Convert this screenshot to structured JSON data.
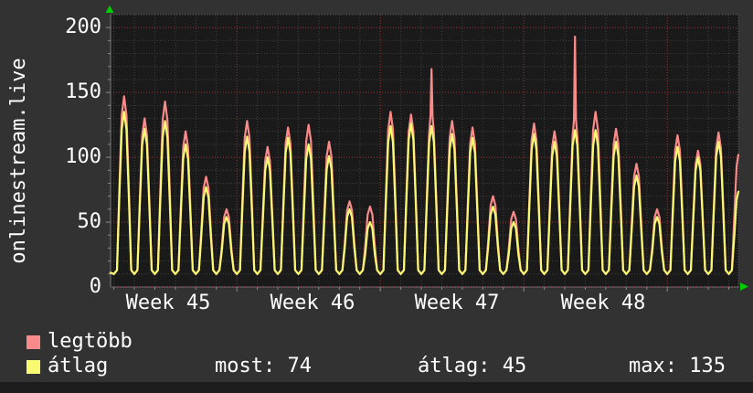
{
  "title": "onlinestream.live",
  "y_axis_ticks": [
    "0",
    "50",
    "100",
    "150",
    "200"
  ],
  "x_axis_labels": [
    "Week 45",
    "Week 46",
    "Week 47",
    "Week 48"
  ],
  "legend": {
    "max_label": "legtöbb",
    "avg_label": "átlag"
  },
  "stats": {
    "most": "most: 74",
    "atlag": "átlag: 45",
    "max": "max: 135"
  },
  "colors": {
    "page_bg": "#323232",
    "plot_bg": "#1a1a1a",
    "max_line": "#f98a8a",
    "avg_line": "#f9f972",
    "grid_minor": "#3e3e3e",
    "grid_major": "#9e3232",
    "axis": "#7a7a7a",
    "arrow": "#00cc00",
    "text": "#ffffff"
  },
  "chart_data": {
    "type": "line",
    "title": "onlinestream.live",
    "xlabel": "",
    "ylabel": "",
    "ylim": [
      0,
      210
    ],
    "y_major_step": 50,
    "y_minor_step": 10,
    "grid": "dotted, minor every 10 units / 1 day, major (red) every 50 units / 1 week",
    "legend_position": "bottom-left",
    "x_categories_weeks": [
      "Week 45",
      "Week 46",
      "Week 47",
      "Week 48"
    ],
    "days_per_week": 7,
    "valley_value": 10,
    "series": [
      {
        "name": "legtöbb",
        "color": "#f98a8a",
        "daily_peaks": [
          147,
          130,
          143,
          120,
          85,
          60,
          128,
          108,
          123,
          125,
          112,
          66,
          62,
          135,
          133,
          168,
          128,
          123,
          70,
          58,
          126,
          120,
          193,
          135,
          122,
          95,
          60,
          117,
          105,
          119,
          104
        ]
      },
      {
        "name": "átlag",
        "color": "#f9f972",
        "daily_peaks": [
          135,
          122,
          128,
          110,
          77,
          54,
          116,
          100,
          115,
          110,
          101,
          60,
          50,
          124,
          126,
          124,
          118,
          115,
          62,
          50,
          118,
          112,
          121,
          121,
          112,
          86,
          54,
          108,
          100,
          112,
          75
        ]
      }
    ],
    "stats": {
      "most": 74,
      "atlag": 45,
      "max": 135
    }
  }
}
